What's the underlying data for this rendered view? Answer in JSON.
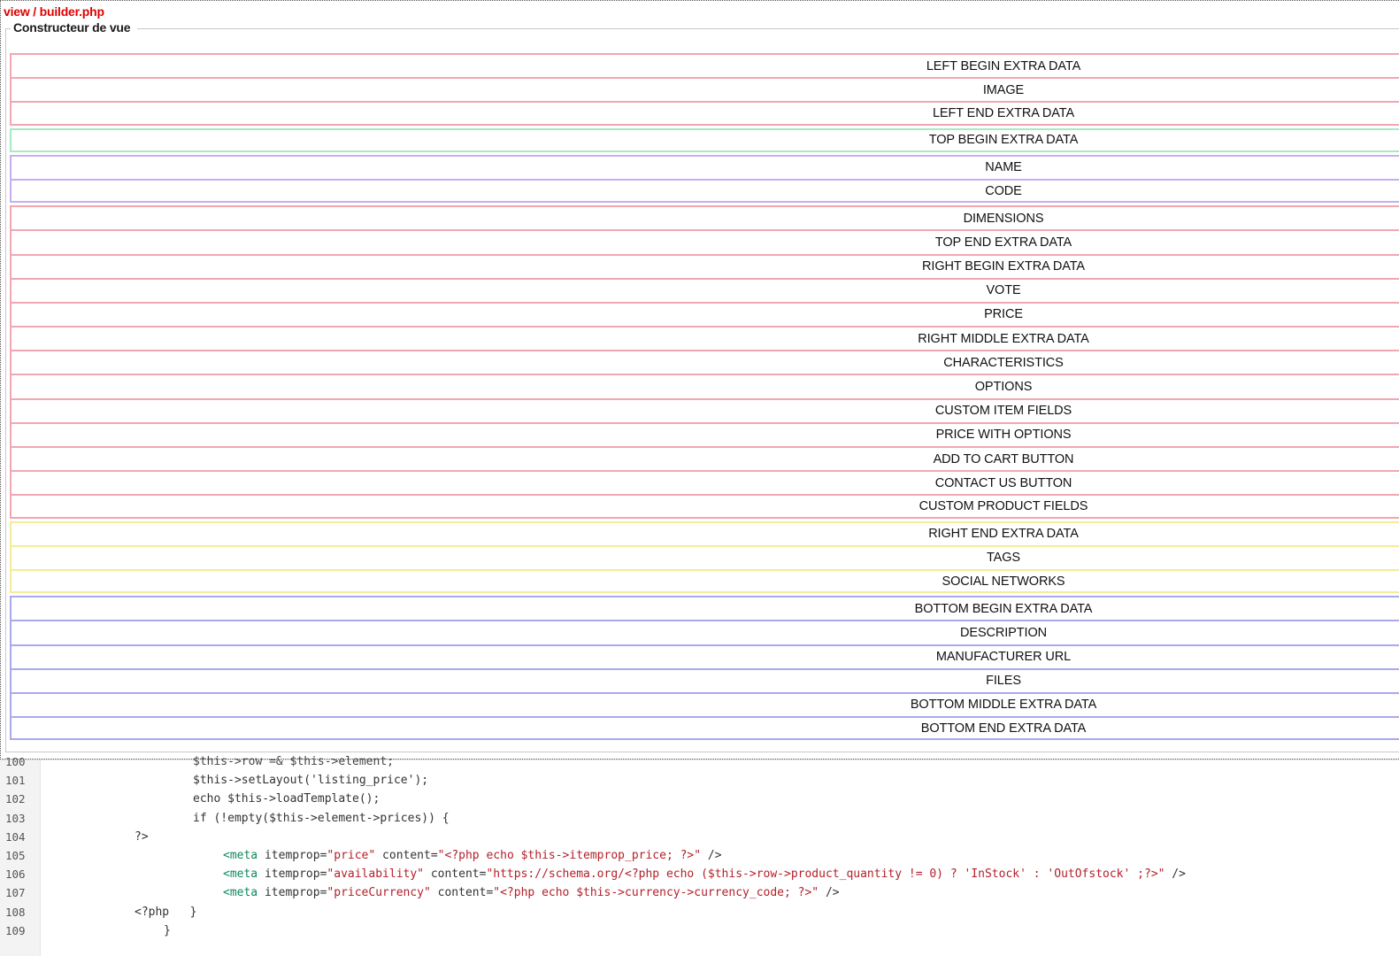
{
  "header": {
    "view_path": "view / builder.php",
    "legend": "Constructeur de vue"
  },
  "groups": [
    {
      "color": "#f2a7b0",
      "items": [
        "LEFT BEGIN EXTRA DATA",
        "IMAGE",
        "LEFT END EXTRA DATA"
      ]
    },
    {
      "color": "#a8e8c6",
      "items": [
        "TOP BEGIN EXTRA DATA"
      ]
    },
    {
      "color": "#c7aef0",
      "items": [
        "NAME",
        "CODE"
      ]
    },
    {
      "color": "#f2a7b0",
      "items": [
        "DIMENSIONS",
        "TOP END EXTRA DATA",
        "RIGHT BEGIN EXTRA DATA",
        "VOTE",
        "PRICE",
        "RIGHT MIDDLE EXTRA DATA",
        "CHARACTERISTICS",
        "OPTIONS",
        "CUSTOM ITEM FIELDS",
        "PRICE WITH OPTIONS",
        "ADD TO CART BUTTON",
        "CONTACT US BUTTON",
        "CUSTOM PRODUCT FIELDS"
      ]
    },
    {
      "color": "#f3ec9a",
      "items": [
        "RIGHT END EXTRA DATA",
        "TAGS",
        "SOCIAL NETWORKS"
      ]
    },
    {
      "color": "#a9a9f0",
      "items": [
        "BOTTOM BEGIN EXTRA DATA",
        "DESCRIPTION",
        "MANUFACTURER URL",
        "FILES",
        "BOTTOM MIDDLE EXTRA DATA",
        "BOTTOM END EXTRA DATA"
      ]
    }
  ],
  "editor": {
    "lines": [
      {
        "num": "100",
        "indent": 66,
        "parts": [
          {
            "t": "$this->row =& $this->element;",
            "c": "cut"
          }
        ]
      },
      {
        "num": "101",
        "indent": 66,
        "parts": [
          {
            "t": "$this->setLayout('listing_price');",
            "c": ""
          }
        ]
      },
      {
        "num": "102",
        "indent": 66,
        "parts": [
          {
            "t": "echo $this->loadTemplate();",
            "c": ""
          }
        ]
      },
      {
        "num": "103",
        "indent": 66,
        "parts": [
          {
            "t": "if (!empty($this->element->prices)) {",
            "c": ""
          }
        ]
      },
      {
        "num": "104",
        "indent": 0,
        "parts": [
          {
            "t": "?>",
            "c": ""
          }
        ]
      },
      {
        "num": "105",
        "indent": 100,
        "parts": [
          {
            "t": "<meta",
            "c": "tag"
          },
          {
            "t": " itemprop=",
            "c": ""
          },
          {
            "t": "\"price\"",
            "c": "str"
          },
          {
            "t": " content=",
            "c": ""
          },
          {
            "t": "\"<?php echo $this->itemprop_price; ?>\"",
            "c": "str"
          },
          {
            "t": " />",
            "c": ""
          }
        ]
      },
      {
        "num": "106",
        "indent": 100,
        "parts": [
          {
            "t": "<meta",
            "c": "tag"
          },
          {
            "t": " itemprop=",
            "c": ""
          },
          {
            "t": "\"availability\"",
            "c": "str"
          },
          {
            "t": " content=",
            "c": ""
          },
          {
            "t": "\"https://schema.org/<?php echo ($this->row->product_quantity != 0) ? 'InStock' : 'OutOfstock' ;?>\"",
            "c": "str"
          },
          {
            "t": " />",
            "c": ""
          }
        ]
      },
      {
        "num": "107",
        "indent": 100,
        "parts": [
          {
            "t": "<meta",
            "c": "tag"
          },
          {
            "t": " itemprop=",
            "c": ""
          },
          {
            "t": "\"priceCurrency\"",
            "c": "str"
          },
          {
            "t": " content=",
            "c": ""
          },
          {
            "t": "\"<?php echo $this->currency->currency_code; ?>\"",
            "c": "str"
          },
          {
            "t": " />",
            "c": ""
          }
        ]
      },
      {
        "num": "108",
        "indent": 0,
        "parts": [
          {
            "t": "<?php   }",
            "c": ""
          }
        ]
      },
      {
        "num": "109",
        "indent": 33,
        "parts": [
          {
            "t": "}",
            "c": ""
          }
        ]
      }
    ]
  }
}
